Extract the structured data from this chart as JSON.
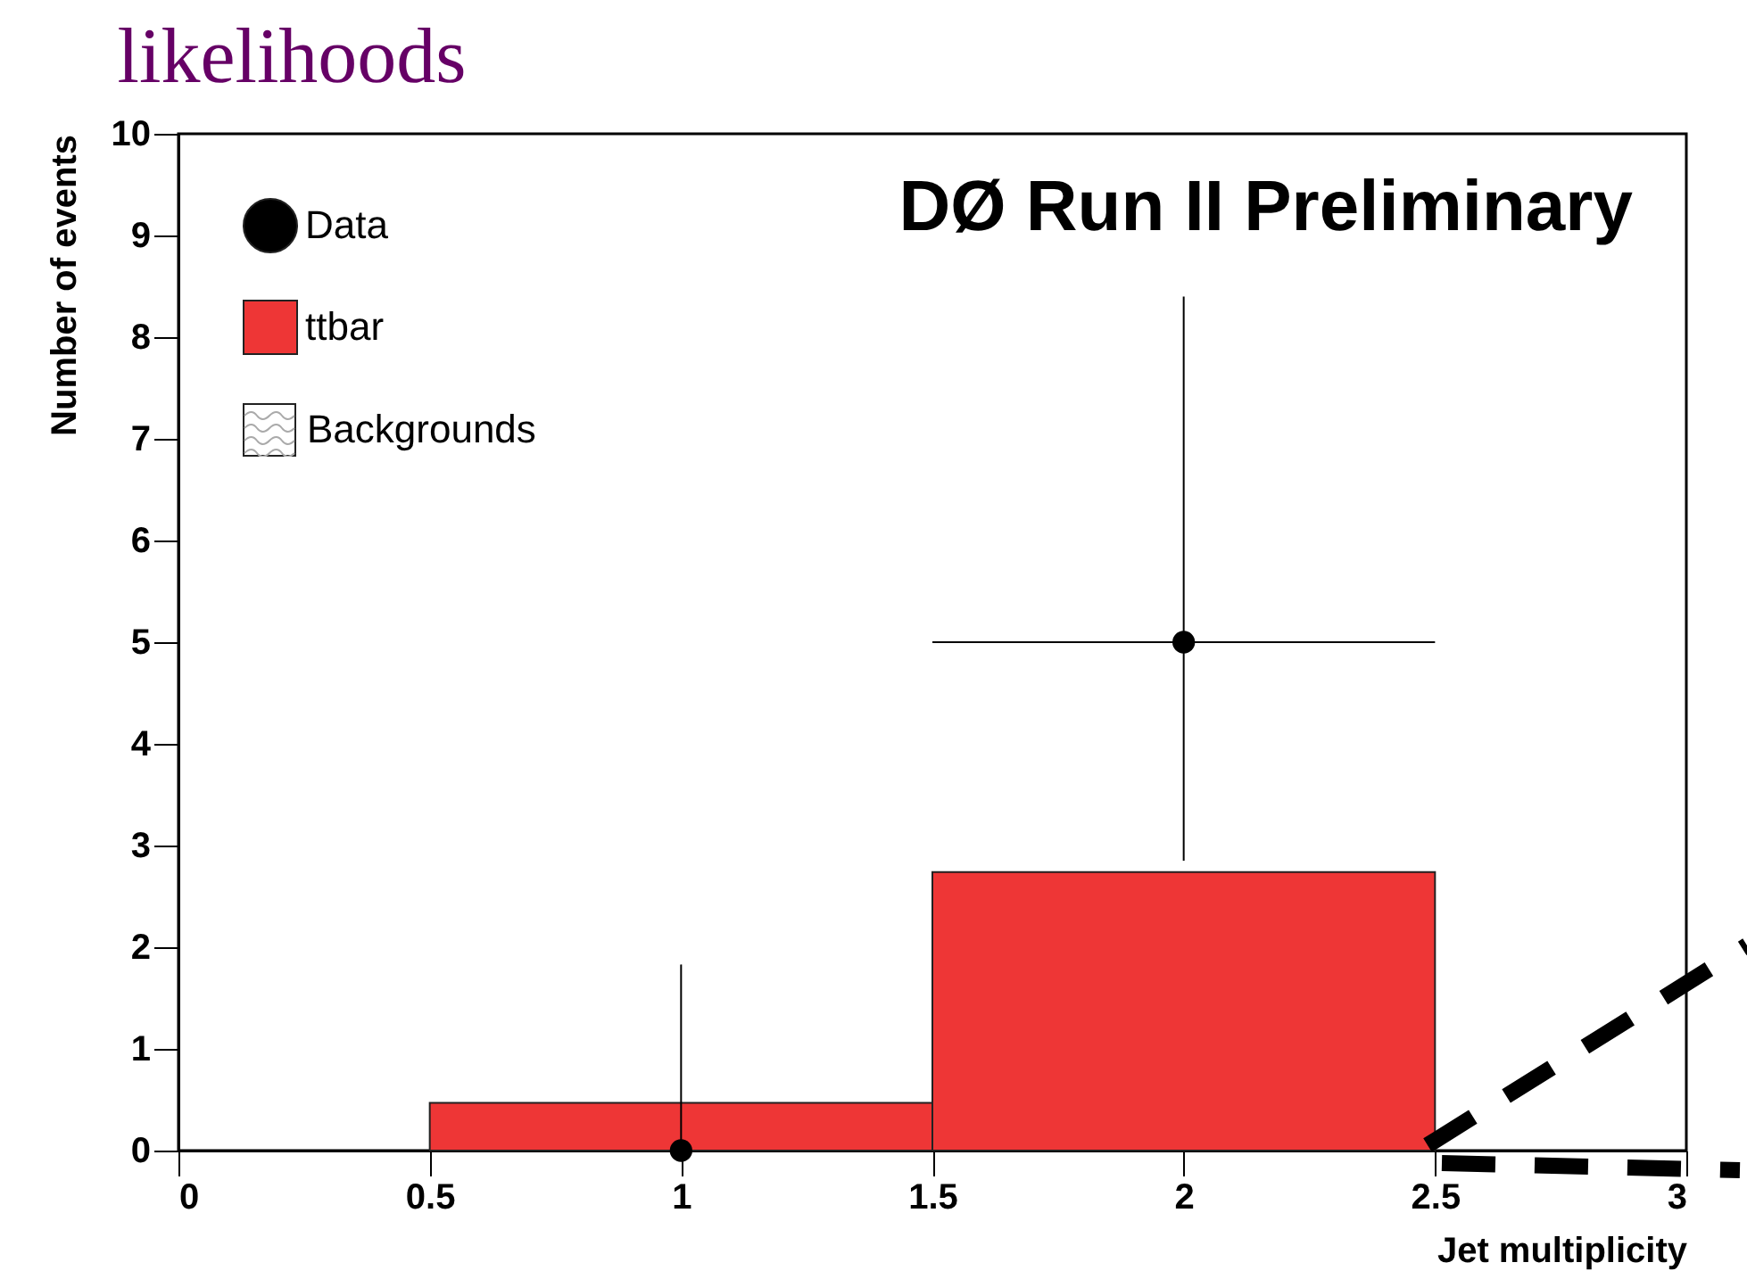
{
  "chart_data": {
    "type": "histogram",
    "title": "likelihoods",
    "xlabel": "Jet multiplicity",
    "ylabel": "Number of events",
    "annotations": [
      "DØ Run II Preliminary",
      "Backgrounds"
    ],
    "bins": [
      0.5,
      1.5,
      2.5
    ],
    "series": [
      {
        "name": "Data",
        "type": "scatter",
        "color": "#000000",
        "x": [
          1,
          2
        ],
        "values": [
          0,
          5
        ],
        "errors": [
          [
            0,
            1.83
          ],
          [
            2.85,
            8.4
          ]
        ],
        "xerrors": [
          null,
          0.5
        ]
      },
      {
        "name": "ttbar",
        "type": "histogram",
        "color": "#ee3636",
        "values": [
          0.47,
          2.74
        ]
      }
    ],
    "xlim": [
      0,
      3
    ],
    "xticks": [
      0,
      0.5,
      1,
      1.5,
      2,
      2.5,
      3
    ],
    "ylim": [
      0,
      10
    ],
    "yticks": [
      0,
      1,
      2,
      3,
      4,
      5,
      6,
      7,
      8,
      9,
      10
    ],
    "legend": "top left",
    "marker": "circle",
    "grid": false
  }
}
